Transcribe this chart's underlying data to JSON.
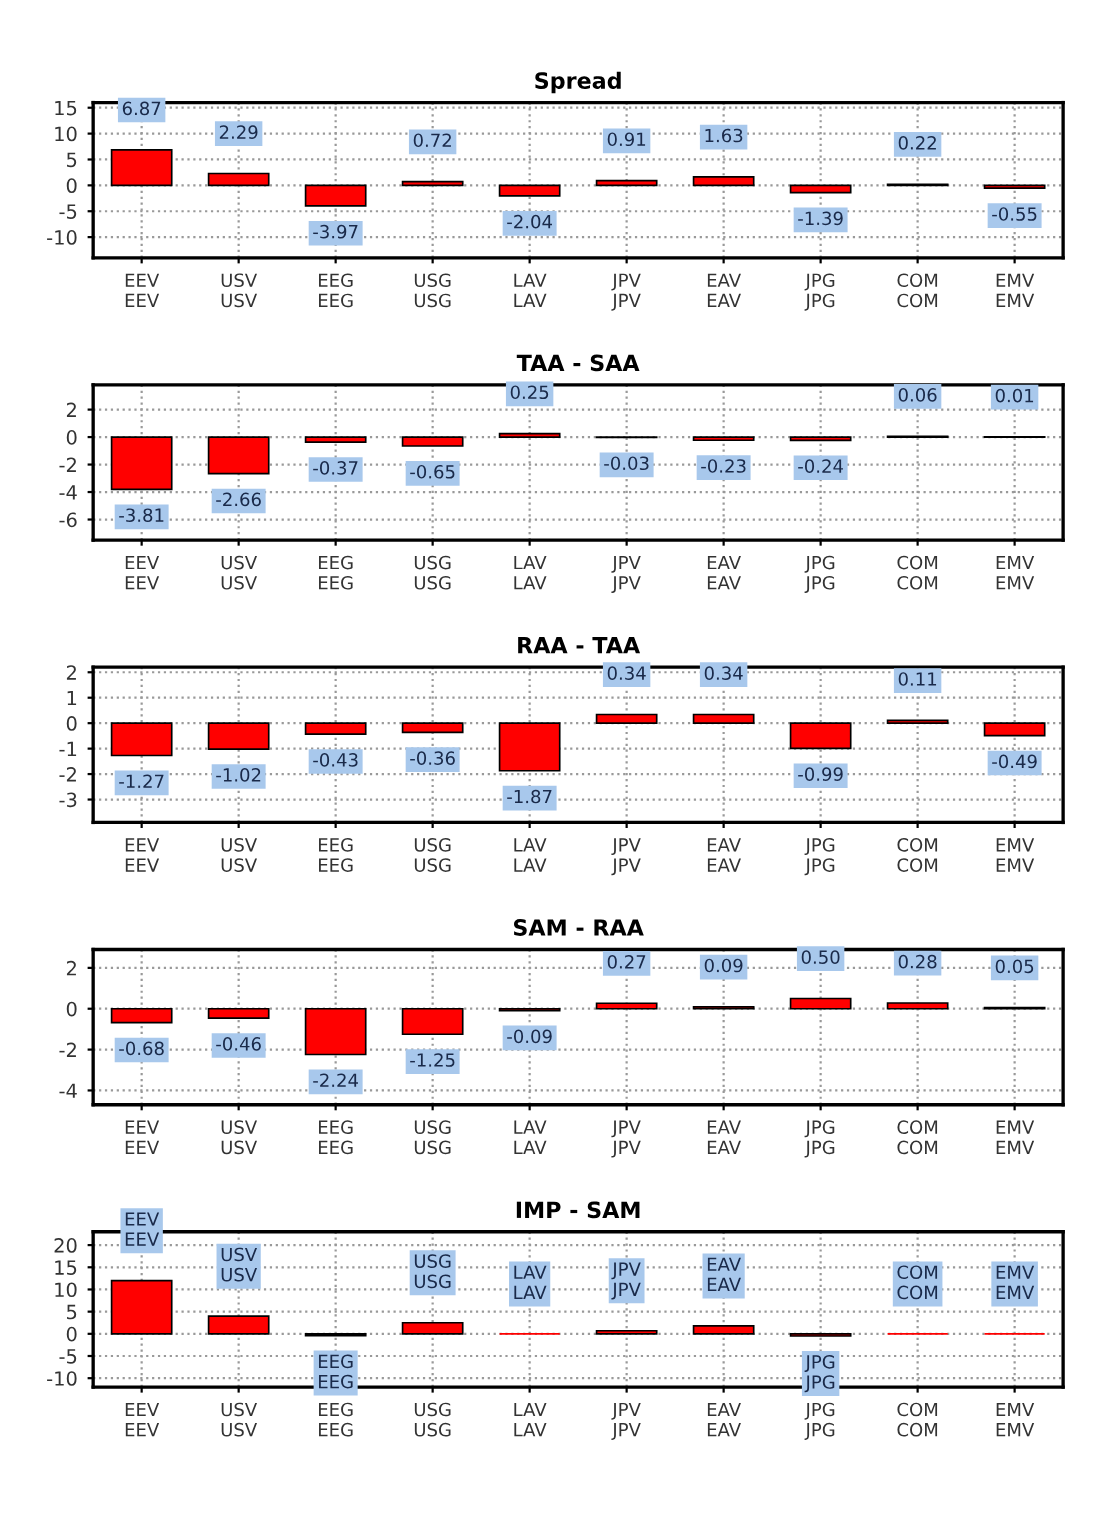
{
  "chart_data": [
    {
      "type": "bar",
      "title": "Spread",
      "categories": [
        "EEV\nEEV",
        "USV\nUSV",
        "EEG\nEEG",
        "USG\nUSG",
        "LAV\nLAV",
        "JPV\nJPV",
        "EAV\nEAV",
        "JPG\nJPG",
        "COM\nCOM",
        "EMV\nEMV"
      ],
      "values": [
        6.87,
        2.29,
        -3.97,
        0.72,
        -2.04,
        0.91,
        1.63,
        -1.39,
        0.22,
        -0.55
      ],
      "color": "#ff0000",
      "data_labels": true,
      "ylim": [
        -14,
        16
      ],
      "yticks": [
        -10,
        -5,
        0,
        5,
        10,
        15
      ],
      "grid": true
    },
    {
      "type": "bar",
      "title": "TAA - SAA",
      "categories": [
        "EEV\nEEV",
        "USV\nUSV",
        "EEG\nEEG",
        "USG\nUSG",
        "LAV\nLAV",
        "JPV\nJPV",
        "EAV\nEAV",
        "JPG\nJPG",
        "COM\nCOM",
        "EMV\nEMV"
      ],
      "values": [
        -3.81,
        -2.66,
        -0.37,
        -0.65,
        0.25,
        -0.03,
        -0.23,
        -0.24,
        0.06,
        0.01
      ],
      "color": "#ff0000",
      "data_labels": true,
      "ylim": [
        -7.5,
        3.8
      ],
      "yticks": [
        -6,
        -4,
        -2,
        0,
        2
      ],
      "grid": true
    },
    {
      "type": "bar",
      "title": "RAA - TAA",
      "categories": [
        "EEV\nEEV",
        "USV\nUSV",
        "EEG\nEEG",
        "USG\nUSG",
        "LAV\nLAV",
        "JPV\nJPV",
        "EAV\nEAV",
        "JPG\nJPG",
        "COM\nCOM",
        "EMV\nEMV"
      ],
      "values": [
        -1.27,
        -1.02,
        -0.43,
        -0.36,
        -1.87,
        0.34,
        0.34,
        -0.99,
        0.11,
        -0.49
      ],
      "color": "#ff0000",
      "data_labels": true,
      "ylim": [
        -3.9,
        2.2
      ],
      "yticks": [
        -3,
        -2,
        -1,
        0,
        1,
        2
      ],
      "grid": true
    },
    {
      "type": "bar",
      "title": "SAM - RAA",
      "categories": [
        "EEV\nEEV",
        "USV\nUSV",
        "EEG\nEEG",
        "USG\nUSG",
        "LAV\nLAV",
        "JPV\nJPV",
        "EAV\nEAV",
        "JPG\nJPG",
        "COM\nCOM",
        "EMV\nEMV"
      ],
      "values": [
        -0.68,
        -0.46,
        -2.24,
        -1.25,
        -0.09,
        0.27,
        0.09,
        0.5,
        0.28,
        0.05
      ],
      "color": "#ff0000",
      "value_labels": [
        "-0.68",
        "-0.46",
        "-2.24",
        "-1.25",
        "-0.09",
        "0.27",
        "0.09",
        "0.50",
        "0.28",
        "0.05"
      ],
      "ylim": [
        -4.7,
        2.9
      ],
      "yticks": [
        -4,
        -2,
        0,
        2
      ],
      "grid": true
    },
    {
      "type": "bar",
      "title": "IMP - SAM",
      "categories": [
        "EEV\nEEV",
        "USV\nUSV",
        "EEG\nEEG",
        "USG\nUSG",
        "LAV\nLAV",
        "JPV\nJPV",
        "EAV\nEAV",
        "JPG\nJPG",
        "COM\nCOM",
        "EMV\nEMV"
      ],
      "values": [
        12,
        4,
        -0.4,
        2.5,
        0,
        0.7,
        1.8,
        -0.5,
        0,
        0
      ],
      "color": "#ff0000",
      "value_labels": [
        "EEV\nEEV",
        "USV\nUSV",
        "EEG\nEEG",
        "USG\nUSG",
        "LAV\nLAV",
        "JPV\nJPV",
        "EAV\nEAV",
        "JPG\nJPG",
        "COM\nCOM",
        "EMV\nEMV"
      ],
      "ylim": [
        -12,
        23
      ],
      "yticks": [
        -10,
        -5,
        0,
        5,
        10,
        15,
        20
      ],
      "grid": true
    }
  ]
}
